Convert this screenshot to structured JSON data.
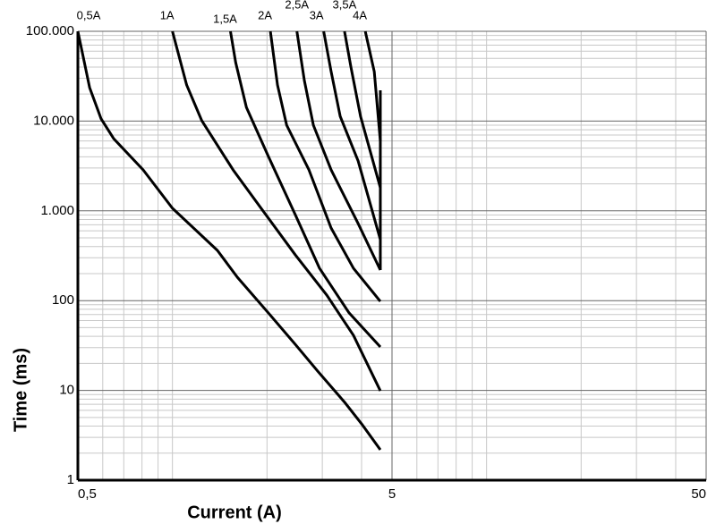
{
  "chart_data": {
    "type": "line",
    "log_x": true,
    "log_y": true,
    "grid": true,
    "x_label": "Current (A)",
    "y_label": "Time (ms)",
    "xlim": [
      0.5,
      50
    ],
    "ylim": [
      1,
      100000
    ],
    "xticks": [
      {
        "value": 0.5,
        "label": "0,5"
      },
      5,
      50
    ],
    "yticks": [
      1,
      10,
      100,
      {
        "value": 1000,
        "label": "1.000"
      },
      {
        "value": 10000,
        "label": "10.000"
      },
      {
        "value": 100000,
        "label": "100.000"
      }
    ],
    "series": [
      {
        "name": "0,5A",
        "color": "#000000",
        "x": [
          0.5,
          0.545,
          0.593,
          0.65,
          0.807,
          1.0,
          1.39,
          1.61,
          2.02,
          2.46,
          2.9,
          3.53,
          4.03,
          4.59
        ],
        "values": [
          100000,
          23600,
          10570,
          6380,
          2860,
          1070,
          363,
          182,
          73,
          32.6,
          16.4,
          7.4,
          4.1,
          2.18
        ]
      },
      {
        "name": "1A",
        "color": "#000000",
        "x": [
          1.0,
          1.11,
          1.24,
          1.56,
          1.89,
          2.46,
          3.1,
          3.77,
          4.59
        ],
        "values": [
          100000,
          25200,
          10100,
          2860,
          1140,
          324,
          115,
          41,
          9.9
        ]
      },
      {
        "name": "1,5A",
        "color": "#000000",
        "x": [
          1.53,
          1.59,
          1.72,
          2.02,
          2.46,
          2.94,
          3.65,
          4.59
        ],
        "values": [
          100000,
          44800,
          14200,
          4040,
          908,
          229,
          73,
          30.5
        ]
      },
      {
        "name": "2A",
        "color": "#000000",
        "x": [
          2.05,
          2.16,
          2.31,
          2.72,
          3.2,
          3.77,
          4.59
        ],
        "values": [
          100000,
          25200,
          9000,
          2860,
          644,
          229,
          98
        ]
      },
      {
        "name": "2,5A",
        "color": "#000000",
        "x": [
          2.49,
          2.63,
          2.81,
          3.2,
          3.9,
          4.59
        ],
        "values": [
          100000,
          28300,
          9000,
          2860,
          723,
          219
        ]
      },
      {
        "name": "3A",
        "color": "#000000",
        "x": [
          3.03,
          3.2,
          3.42,
          3.9,
          4.59
        ],
        "values": [
          100000,
          35600,
          11300,
          3600,
          478
        ]
      },
      {
        "name": "3,5A",
        "color": "#000000",
        "x": [
          3.53,
          3.7,
          3.97,
          4.59
        ],
        "values": [
          100000,
          40000,
          11300,
          1810
        ]
      },
      {
        "name": "4A",
        "color": "#000000",
        "x": [
          4.11,
          4.39,
          4.59
        ],
        "values": [
          100000,
          35600,
          5960
        ]
      },
      {
        "color": "#000000",
        "x": [
          4.59,
          4.59
        ],
        "values": [
          22000,
          219
        ]
      }
    ]
  }
}
